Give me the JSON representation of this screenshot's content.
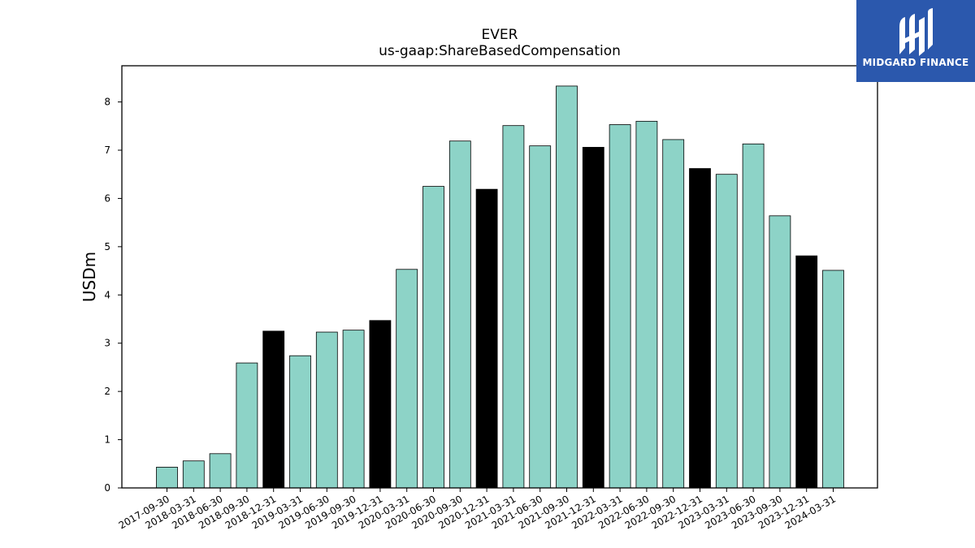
{
  "chart_data": {
    "type": "bar",
    "title": "EVER",
    "subtitle": "us-gaap:ShareBasedCompensation",
    "ylabel": "USDm",
    "xlabel": "",
    "ylim": [
      0,
      8.75
    ],
    "yticks": [
      0,
      1,
      2,
      3,
      4,
      5,
      6,
      7,
      8
    ],
    "grid": false,
    "legend": "none",
    "colors": {
      "quarter": "#8dd3c7",
      "year_end": "#000000",
      "edge": "#000000"
    },
    "categories": [
      "2017-09-30",
      "2018-03-31",
      "2018-06-30",
      "2018-09-30",
      "2018-12-31",
      "2019-03-31",
      "2019-06-30",
      "2019-09-30",
      "2019-12-31",
      "2020-03-31",
      "2020-06-30",
      "2020-09-30",
      "2020-12-31",
      "2021-03-31",
      "2021-06-30",
      "2021-09-30",
      "2021-12-31",
      "2022-03-31",
      "2022-06-30",
      "2022-09-30",
      "2022-12-31",
      "2023-03-31",
      "2023-06-30",
      "2023-09-30",
      "2023-12-31",
      "2024-03-31"
    ],
    "values": [
      0.43,
      0.56,
      0.71,
      2.59,
      3.25,
      2.74,
      3.23,
      3.27,
      3.47,
      4.53,
      6.25,
      7.19,
      6.19,
      7.51,
      7.09,
      8.33,
      7.06,
      7.53,
      7.6,
      7.22,
      6.62,
      6.5,
      7.13,
      5.64,
      4.81,
      4.51
    ],
    "year_end": [
      false,
      false,
      false,
      false,
      true,
      false,
      false,
      false,
      true,
      false,
      false,
      false,
      true,
      false,
      false,
      false,
      true,
      false,
      false,
      false,
      true,
      false,
      false,
      false,
      true,
      false
    ]
  },
  "logo": {
    "text": "MIDGARD FINANCE",
    "icon": "midgard-logo-icon"
  }
}
